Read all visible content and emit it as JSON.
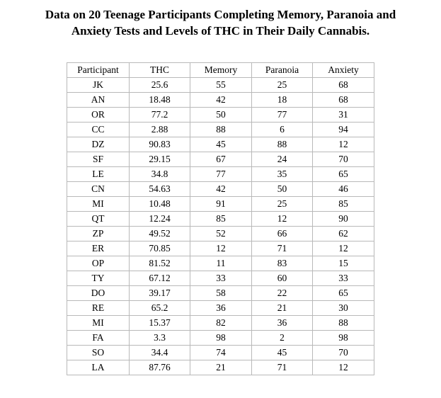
{
  "title": {
    "line1": "Data on 20 Teenage Participants Completing Memory, Paranoia and",
    "line2": "Anxiety Tests and Levels of THC in Their Daily Cannabis."
  },
  "table": {
    "headers": [
      "Participant",
      "THC",
      "Memory",
      "Paranoia",
      "Anxiety"
    ],
    "rows": [
      [
        "JK",
        "25.6",
        "55",
        "25",
        "68"
      ],
      [
        "AN",
        "18.48",
        "42",
        "18",
        "68"
      ],
      [
        "OR",
        "77.2",
        "50",
        "77",
        "31"
      ],
      [
        "CC",
        "2.88",
        "88",
        "6",
        "94"
      ],
      [
        "DZ",
        "90.83",
        "45",
        "88",
        "12"
      ],
      [
        "SF",
        "29.15",
        "67",
        "24",
        "70"
      ],
      [
        "LE",
        "34.8",
        "77",
        "35",
        "65"
      ],
      [
        "CN",
        "54.63",
        "42",
        "50",
        "46"
      ],
      [
        "MI",
        "10.48",
        "91",
        "25",
        "85"
      ],
      [
        "QT",
        "12.24",
        "85",
        "12",
        "90"
      ],
      [
        "ZP",
        "49.52",
        "52",
        "66",
        "62"
      ],
      [
        "ER",
        "70.85",
        "12",
        "71",
        "12"
      ],
      [
        "OP",
        "81.52",
        "11",
        "83",
        "15"
      ],
      [
        "TY",
        "67.12",
        "33",
        "60",
        "33"
      ],
      [
        "DO",
        "39.17",
        "58",
        "22",
        "65"
      ],
      [
        "RE",
        "65.2",
        "36",
        "21",
        "30"
      ],
      [
        "MI",
        "15.37",
        "82",
        "36",
        "88"
      ],
      [
        "FA",
        "3.3",
        "98",
        "2",
        "98"
      ],
      [
        "SO",
        "34.4",
        "74",
        "45",
        "70"
      ],
      [
        "LA",
        "87.76",
        "21",
        "71",
        "12"
      ]
    ]
  }
}
